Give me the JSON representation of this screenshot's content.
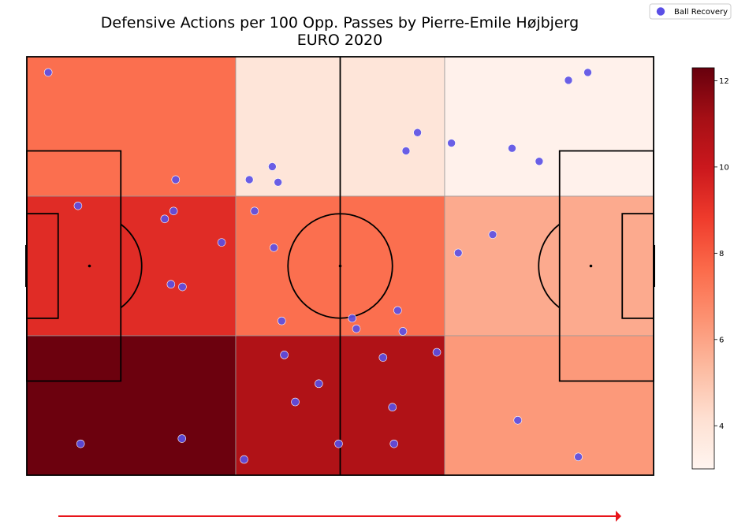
{
  "chart_data": {
    "type": "heatmap",
    "title": "Defensive Actions per 100 Opp. Passes by Pierre-Emile Højbjerg",
    "subtitle": "EURO 2020",
    "x_range": [
      0,
      120
    ],
    "y_range": [
      0,
      80
    ],
    "bins": {
      "cols": 3,
      "rows": 3
    },
    "heatmap_values": [
      [
        7.5,
        3.9,
        3.2
      ],
      [
        9.3,
        7.5,
        5.8
      ],
      [
        12.2,
        10.8,
        6.3
      ]
    ],
    "colorbar": {
      "min": 3.0,
      "max": 12.3,
      "ticks": [
        4,
        6,
        8,
        10,
        12
      ],
      "tick_labels": [
        "4",
        "6",
        "8",
        "10",
        "12"
      ],
      "colormap": "Reds"
    },
    "legend": {
      "label": "Ball Recovery",
      "placement": "top-right",
      "marker_color": "#5a4fe6"
    },
    "direction_arrow_color": "#e8141a",
    "points": [
      {
        "x": 4.1,
        "y": 77.0
      },
      {
        "x": 103.7,
        "y": 75.5
      },
      {
        "x": 107.4,
        "y": 77.0
      },
      {
        "x": 74.8,
        "y": 65.5
      },
      {
        "x": 72.6,
        "y": 62.0
      },
      {
        "x": 81.3,
        "y": 63.5
      },
      {
        "x": 98.1,
        "y": 60.0
      },
      {
        "x": 92.9,
        "y": 62.5
      },
      {
        "x": 28.5,
        "y": 56.5
      },
      {
        "x": 42.6,
        "y": 56.5
      },
      {
        "x": 47.0,
        "y": 59.0
      },
      {
        "x": 48.1,
        "y": 56.0
      },
      {
        "x": 9.8,
        "y": 51.5
      },
      {
        "x": 28.1,
        "y": 50.5
      },
      {
        "x": 26.4,
        "y": 49.0
      },
      {
        "x": 43.6,
        "y": 50.5
      },
      {
        "x": 37.3,
        "y": 44.5
      },
      {
        "x": 47.3,
        "y": 43.5
      },
      {
        "x": 89.2,
        "y": 46.0
      },
      {
        "x": 82.6,
        "y": 42.5
      },
      {
        "x": 27.6,
        "y": 36.5
      },
      {
        "x": 29.8,
        "y": 36.0
      },
      {
        "x": 71.0,
        "y": 31.5
      },
      {
        "x": 62.3,
        "y": 30.0
      },
      {
        "x": 48.8,
        "y": 29.5
      },
      {
        "x": 63.1,
        "y": 28.0
      },
      {
        "x": 72.0,
        "y": 27.5
      },
      {
        "x": 49.3,
        "y": 23.0
      },
      {
        "x": 78.5,
        "y": 23.5
      },
      {
        "x": 68.2,
        "y": 22.5
      },
      {
        "x": 55.9,
        "y": 17.5
      },
      {
        "x": 51.4,
        "y": 14.0
      },
      {
        "x": 70.0,
        "y": 13.0
      },
      {
        "x": 94.0,
        "y": 10.5
      },
      {
        "x": 10.3,
        "y": 6.0
      },
      {
        "x": 29.7,
        "y": 7.0
      },
      {
        "x": 59.7,
        "y": 6.0
      },
      {
        "x": 70.3,
        "y": 6.0
      },
      {
        "x": 41.6,
        "y": 3.0
      },
      {
        "x": 105.6,
        "y": 3.5
      }
    ]
  }
}
